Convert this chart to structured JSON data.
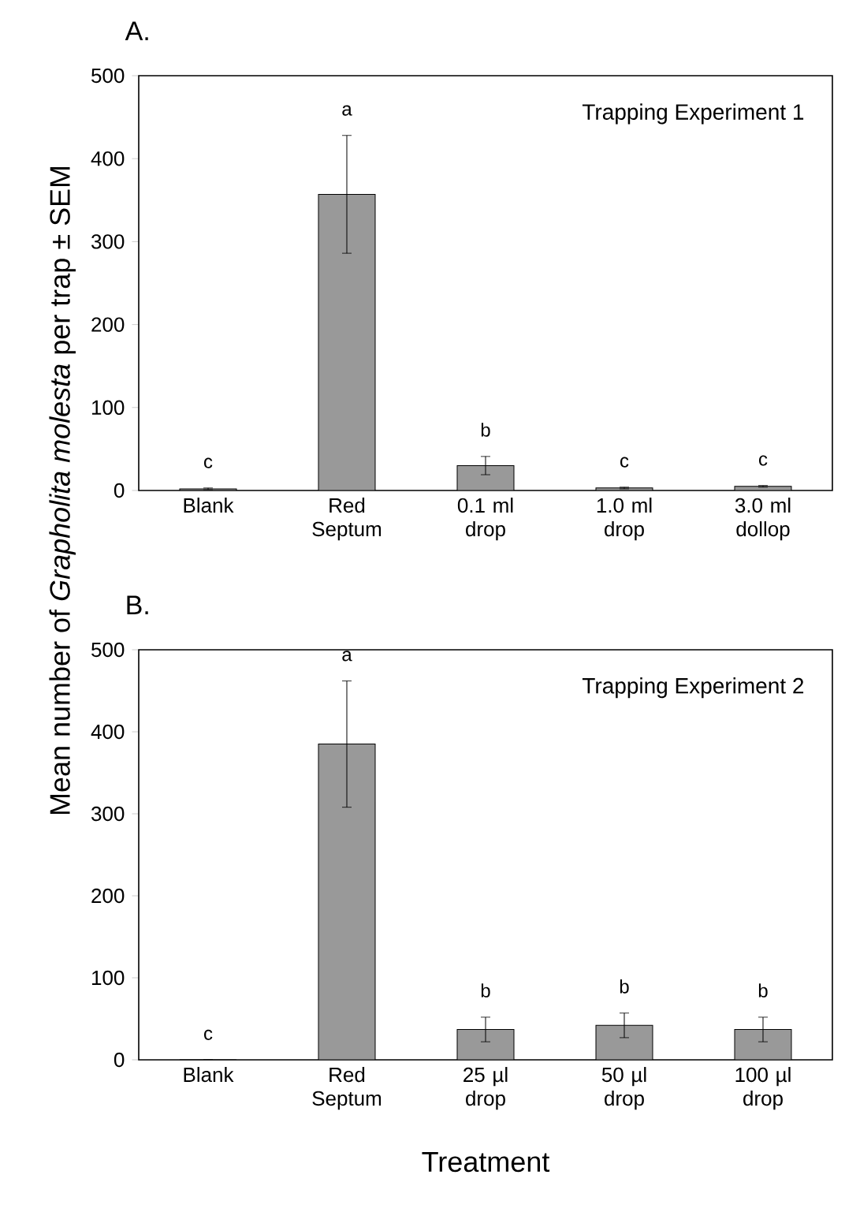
{
  "chart_data": [
    {
      "type": "bar",
      "title": "A.",
      "ylabel": "Mean number of *Grapholita molesta* per trap ± SEM",
      "categories": [
        "Blank",
        "Red Septum",
        "0.1 ml drop",
        "1.0 ml drop",
        "3.0 ml dollop"
      ],
      "values": [
        2,
        357,
        30,
        3,
        5
      ],
      "errors": [
        1,
        71,
        11,
        1,
        1
      ],
      "color": "#999999",
      "ylim": [
        0,
        500
      ],
      "yticks": [
        0,
        100,
        200,
        300,
        400,
        500
      ],
      "annotations": [
        "Trapping Experiment 1",
        "c",
        "a",
        "b",
        "c",
        "c"
      ]
    },
    {
      "type": "bar",
      "title": "B.",
      "xlabel": "Treatment",
      "categories": [
        "Blank",
        "Red Septum",
        "25 µl drop",
        "50 µl drop",
        "100 µl drop"
      ],
      "values": [
        0,
        385,
        37,
        42,
        37
      ],
      "errors": [
        0,
        77,
        15,
        15,
        15
      ],
      "color": "#999999",
      "ylim": [
        0,
        500
      ],
      "yticks": [
        0,
        100,
        200,
        300,
        400,
        500
      ],
      "annotations": [
        "Trapping Experiment 2",
        "c",
        "a",
        "b",
        "b",
        "b"
      ]
    }
  ]
}
